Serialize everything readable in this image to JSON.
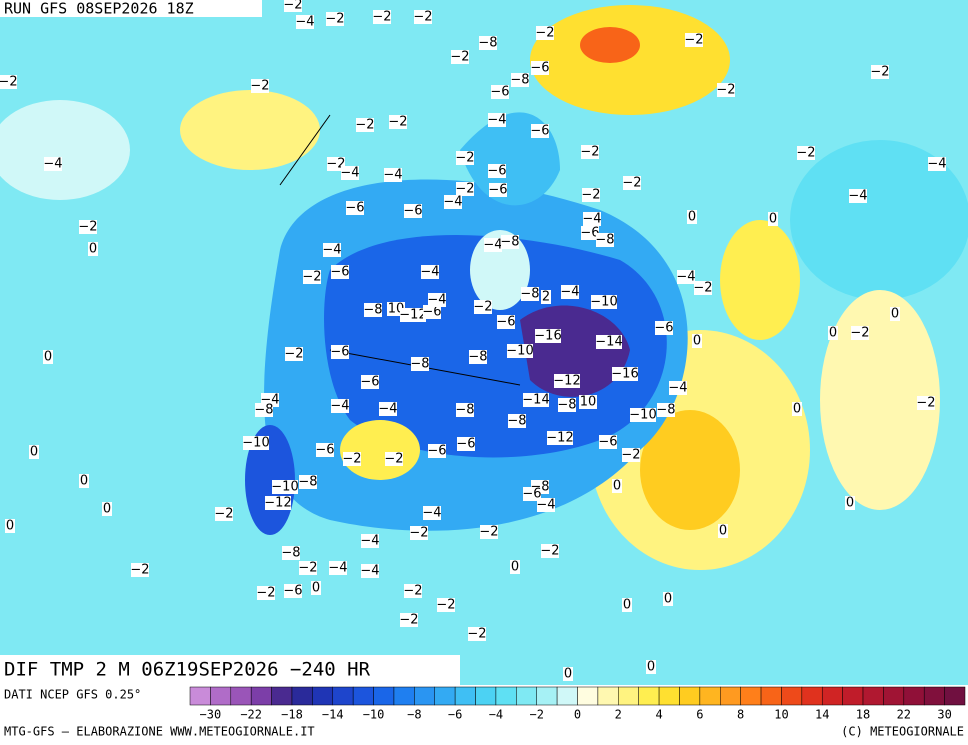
{
  "header": {
    "run": "RUN GFS 08SEP2026 18Z",
    "field": "DIF TMP 2 M 06Z19SEP2026 −240 HR"
  },
  "footer": {
    "source": "DATI NCEP GFS 0.25°",
    "credit": "MTG-GFS – ELABORAZIONE WWW.METEOGIORNALE.IT",
    "copyright": "(C) METEOGIORNALE"
  },
  "legend": {
    "colors": [
      "#c98bd9",
      "#b06cc8",
      "#9a55b8",
      "#7c3ea8",
      "#4a2a90",
      "#2a2a9a",
      "#1f35b5",
      "#1e45cc",
      "#1c55dd",
      "#1a66e8",
      "#1f7ff0",
      "#2a95f2",
      "#33aaf3",
      "#3fbff4",
      "#4cd2f3",
      "#5fe0f3",
      "#7fe9f3",
      "#a6f1f5",
      "#d0f8f8",
      "#fffde0",
      "#fff8b0",
      "#fff380",
      "#ffee50",
      "#ffe030",
      "#ffcc20",
      "#ffb520",
      "#ff9a20",
      "#ff7f1a",
      "#f86418",
      "#ee4a1a",
      "#e0321e",
      "#d02424",
      "#c01c2a",
      "#b01830",
      "#a01434",
      "#901038",
      "#80103c",
      "#701040"
    ],
    "labels": [
      "−30",
      "−22",
      "−18",
      "−14",
      "−10",
      "−8",
      "−6",
      "−4",
      "−2",
      "0",
      "2",
      "4",
      "6",
      "8",
      "10",
      "14",
      "18",
      "22",
      "30"
    ]
  },
  "contour_labels": [
    "−2",
    "−4",
    "−2",
    "−2",
    "−2",
    "−8",
    "−2",
    "−2",
    "−2",
    "−6",
    "−8",
    "−6",
    "−2",
    "−2",
    "−2",
    "−2",
    "−4",
    "−6",
    "−2",
    "−2",
    "−2",
    "−2",
    "−4",
    "−4",
    "−2",
    "−4",
    "−4",
    "−6",
    "−2",
    "−6",
    "−2",
    "−4",
    "−2",
    "−2",
    "−6",
    "−6",
    "0",
    "0",
    "−4",
    "−2",
    "0",
    "−4",
    "−4",
    "−8",
    "−4",
    "−6",
    "−8",
    "−6",
    "−4",
    "−2",
    "−4",
    "−2",
    "−8",
    "10",
    "−12",
    "−6",
    "−4",
    "−2",
    "−8",
    "2",
    "−4",
    "−10",
    "−6",
    "−16",
    "−14",
    "−6",
    "0",
    "−2",
    "0",
    "0",
    "−2",
    "−6",
    "−8",
    "−8",
    "−10",
    "−12",
    "−16",
    "−4",
    "0",
    "−6",
    "−4",
    "−8",
    "−4",
    "−4",
    "−8",
    "−14",
    "−8",
    "10",
    "−10",
    "−8",
    "0",
    "−2",
    "−8",
    "−12",
    "−6",
    "−10",
    "−6",
    "−2",
    "−6",
    "−6",
    "−2",
    "0",
    "−2",
    "0",
    "−10",
    "−8",
    "−8",
    "−6",
    "−4",
    "0",
    "−12",
    "0",
    "−2",
    "−4",
    "0",
    "0",
    "−2",
    "−4",
    "−2",
    "0",
    "−2",
    "−8",
    "−2",
    "−2",
    "−4",
    "−4",
    "0",
    "−2",
    "−6",
    "0",
    "−2",
    "−2",
    "0",
    "0",
    "−2",
    "−2",
    "0",
    "0"
  ]
}
